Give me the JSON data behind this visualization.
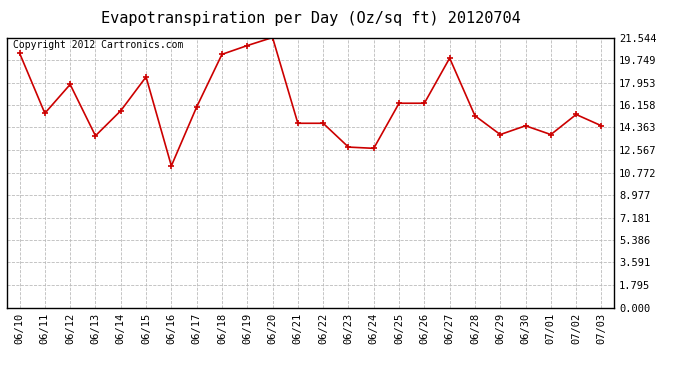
{
  "title": "Evapotranspiration per Day (Oz/sq ft) 20120704",
  "copyright_text": "Copyright 2012 Cartronics.com",
  "dates": [
    "06/10",
    "06/11",
    "06/12",
    "06/13",
    "06/14",
    "06/15",
    "06/16",
    "06/17",
    "06/18",
    "06/19",
    "06/20",
    "06/21",
    "06/22",
    "06/23",
    "06/24",
    "06/25",
    "06/26",
    "06/27",
    "06/28",
    "06/29",
    "06/30",
    "07/01",
    "07/02",
    "07/03"
  ],
  "values": [
    20.3,
    15.5,
    17.8,
    13.7,
    15.7,
    18.4,
    11.3,
    16.0,
    20.2,
    20.9,
    21.544,
    14.7,
    14.7,
    12.8,
    12.7,
    16.3,
    16.3,
    19.9,
    15.3,
    13.8,
    14.5,
    13.8,
    15.4,
    14.5
  ],
  "line_color": "#cc0000",
  "marker": "+",
  "marker_color": "#cc0000",
  "background_color": "#ffffff",
  "grid_color": "#bbbbbb",
  "yticks": [
    0.0,
    1.795,
    3.591,
    5.386,
    7.181,
    8.977,
    10.772,
    12.567,
    14.363,
    16.158,
    17.953,
    19.749,
    21.544
  ],
  "ytick_labels": [
    "0.000",
    "1.795",
    "3.591",
    "5.386",
    "7.181",
    "8.977",
    "10.772",
    "12.567",
    "14.363",
    "16.158",
    "17.953",
    "19.749",
    "21.544"
  ],
  "ylim": [
    0.0,
    21.544
  ],
  "title_fontsize": 11,
  "copyright_fontsize": 7,
  "tick_fontsize": 7.5
}
